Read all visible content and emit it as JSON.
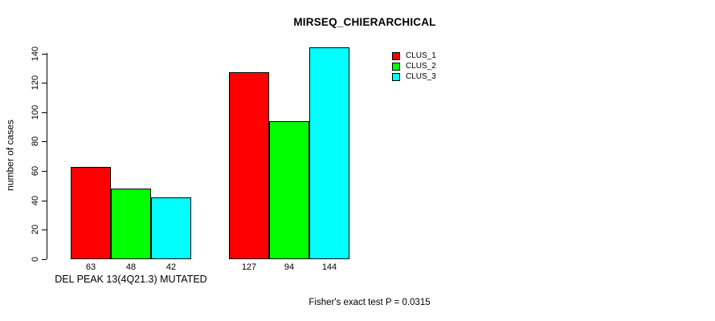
{
  "chart_data": {
    "type": "bar",
    "title": "MIRSEQ_CHIERARCHICAL",
    "ylabel": "number of cases",
    "xlabel": "DEL PEAK 13(4Q21.3) MUTATED",
    "categories": [
      "DEL PEAK 13(4Q21.3) MUTATED",
      ""
    ],
    "series": [
      {
        "name": "CLUS_1",
        "color": "#ff0000",
        "values": [
          63,
          127
        ]
      },
      {
        "name": "CLUS_2",
        "color": "#00ff00",
        "values": [
          48,
          94
        ]
      },
      {
        "name": "CLUS_3",
        "color": "#00ffff",
        "values": [
          42,
          144
        ]
      }
    ],
    "yticks": [
      0,
      20,
      40,
      60,
      80,
      100,
      120,
      140
    ],
    "ylim": [
      0,
      140
    ],
    "bar_value_labels": [
      [
        63,
        48,
        42
      ],
      [
        127,
        94,
        144
      ]
    ],
    "grid": false,
    "legend_position": "top-right",
    "annotation": "Fisher's exact test P = 0.0315",
    "axis_color": "#000000"
  }
}
